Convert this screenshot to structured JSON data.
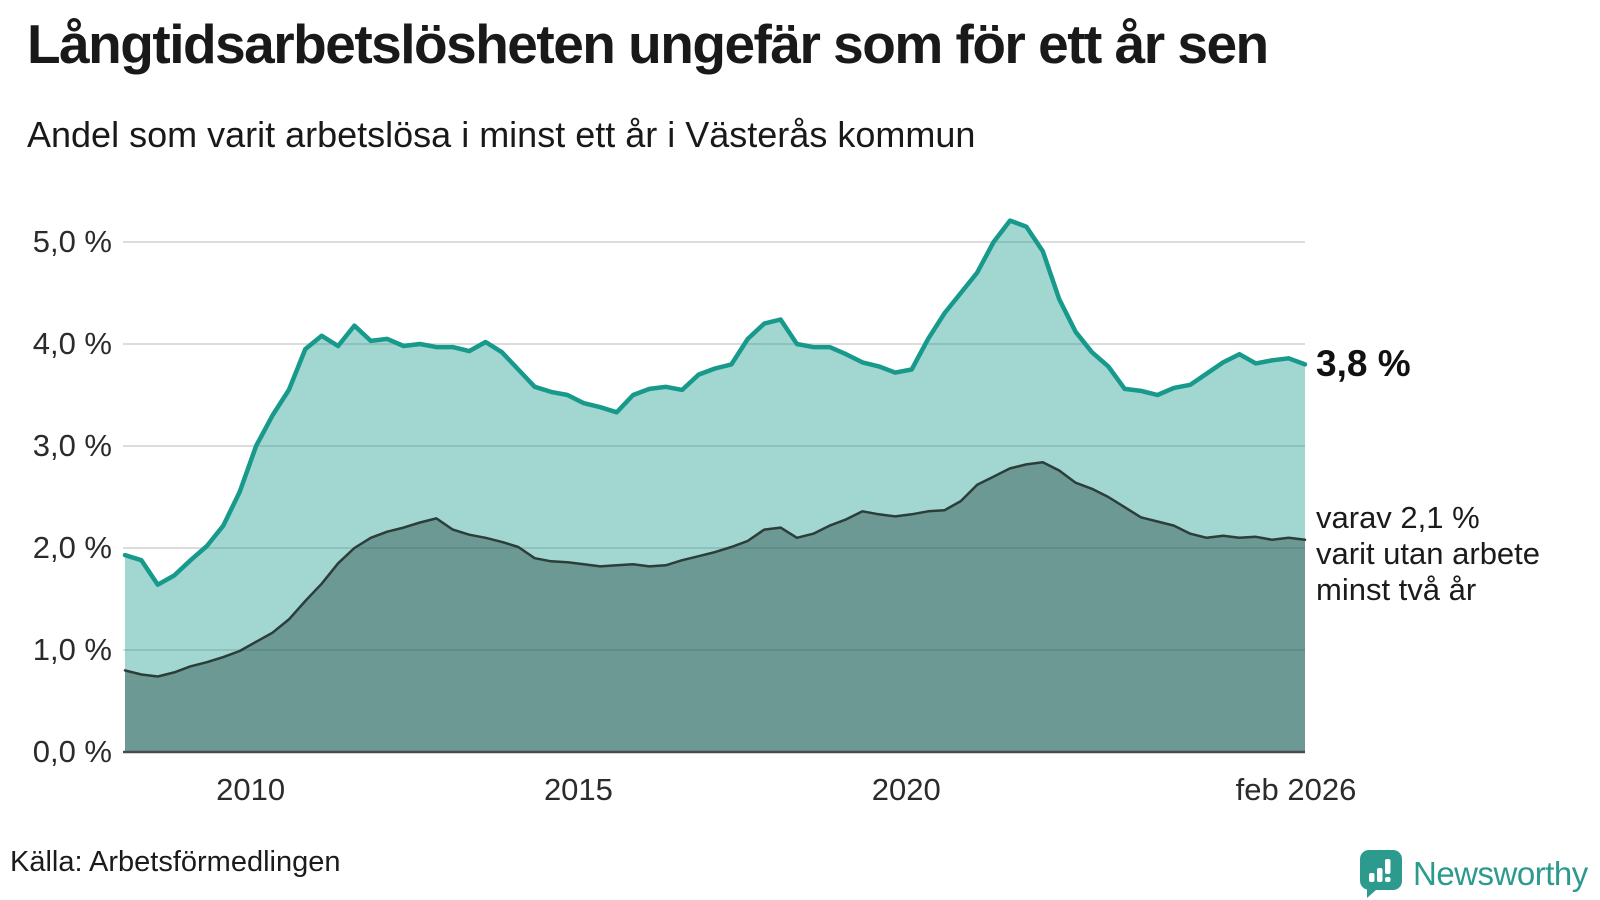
{
  "header": {
    "title": "Långtidsarbetslösheten ungefär som för ett år sen",
    "subtitle": "Andel som varit arbetslösa i minst ett år i Västerås kommun"
  },
  "annotations": {
    "end_value_label": "3,8 %",
    "secondary_lines": [
      "varav 2,1 %",
      "varit utan arbete",
      "minst två år"
    ]
  },
  "footer": {
    "source": "Källa: Arbetsförmedlingen",
    "logo_text": "Newsworthy"
  },
  "colors": {
    "accent_teal": "#17998b",
    "area_one_year_fill": "rgba(23,153,139,0.40)",
    "dark_line": "#2c3e39",
    "area_two_year_fill": "rgba(35,70,64,0.42)",
    "gridline": "#dcdcdc",
    "baseline": "#4a4a4a",
    "logo_teal": "#2d9a8e",
    "text": "#191919"
  },
  "chart_data": {
    "type": "area",
    "title": "Långtidsarbetslösheten ungefär som för ett år sen",
    "subtitle": "Andel som varit arbetslösa i minst ett år i Västerås kommun",
    "unit": "%",
    "ylim": [
      0,
      5.4
    ],
    "grid": "horizontal",
    "legend_position": "none",
    "y_gridlines": [
      1,
      2,
      3,
      4,
      5
    ],
    "y_ticks": [
      {
        "value": 5,
        "label": "5,0 %"
      },
      {
        "value": 4,
        "label": "4,0 %"
      },
      {
        "value": 3,
        "label": "3,0 %"
      },
      {
        "value": 2,
        "label": "2,0 %"
      },
      {
        "value": 1,
        "label": "1,0 %"
      },
      {
        "value": 0,
        "label": "0,0 %"
      }
    ],
    "x_ticks": [
      {
        "date": "2010-01",
        "label": "2010"
      },
      {
        "date": "2015-01",
        "label": "2015"
      },
      {
        "date": "2020-01",
        "label": "2020"
      },
      {
        "date": "2026-02",
        "label": "feb 2026"
      }
    ],
    "x_range": {
      "start": "2008-02",
      "end": "2026-02"
    },
    "x": [
      "2008-02",
      "2008-05",
      "2008-08",
      "2008-11",
      "2009-02",
      "2009-05",
      "2009-08",
      "2009-11",
      "2010-02",
      "2010-05",
      "2010-08",
      "2010-11",
      "2011-02",
      "2011-05",
      "2011-08",
      "2011-11",
      "2012-02",
      "2012-05",
      "2012-08",
      "2012-11",
      "2013-02",
      "2013-05",
      "2013-08",
      "2013-11",
      "2014-02",
      "2014-05",
      "2014-08",
      "2014-11",
      "2015-02",
      "2015-05",
      "2015-08",
      "2015-11",
      "2016-02",
      "2016-05",
      "2016-08",
      "2016-11",
      "2017-02",
      "2017-05",
      "2017-08",
      "2017-11",
      "2018-02",
      "2018-05",
      "2018-08",
      "2018-11",
      "2019-02",
      "2019-05",
      "2019-08",
      "2019-11",
      "2020-02",
      "2020-05",
      "2020-08",
      "2020-11",
      "2021-02",
      "2021-05",
      "2021-08",
      "2021-11",
      "2022-02",
      "2022-05",
      "2022-08",
      "2022-11",
      "2023-02",
      "2023-05",
      "2023-08",
      "2023-11",
      "2024-02",
      "2024-05",
      "2024-08",
      "2024-11",
      "2025-02",
      "2025-05",
      "2025-08",
      "2025-11",
      "2026-02"
    ],
    "series": [
      {
        "name": "Arbetslösa minst ett år",
        "end_value_label": "3,8 %",
        "line_color": "#17998b",
        "line_width": 4.5,
        "fill": "rgba(23,153,139,0.40)",
        "values": [
          1.93,
          1.88,
          1.64,
          1.73,
          1.88,
          2.02,
          2.22,
          2.55,
          3.0,
          3.3,
          3.55,
          3.95,
          4.08,
          3.98,
          4.18,
          4.03,
          4.05,
          3.98,
          4.0,
          3.97,
          3.97,
          3.93,
          4.02,
          3.92,
          3.75,
          3.58,
          3.53,
          3.5,
          3.42,
          3.38,
          3.33,
          3.5,
          3.56,
          3.58,
          3.55,
          3.7,
          3.76,
          3.8,
          4.05,
          4.2,
          4.24,
          4.0,
          3.97,
          3.97,
          3.9,
          3.82,
          3.78,
          3.72,
          3.75,
          4.05,
          4.3,
          4.5,
          4.7,
          5.0,
          5.21,
          5.15,
          4.91,
          4.44,
          4.12,
          3.92,
          3.78,
          3.56,
          3.54,
          3.5,
          3.57,
          3.6,
          3.71,
          3.82,
          3.9,
          3.81,
          3.84,
          3.86,
          3.8
        ]
      },
      {
        "name": "Varav utan arbete minst två år",
        "end_value_label": "2,1 %",
        "line_color": "#2c3e39",
        "line_width": 2.5,
        "fill": "rgba(35,70,64,0.42)",
        "values": [
          0.8,
          0.76,
          0.74,
          0.78,
          0.84,
          0.88,
          0.93,
          0.99,
          1.08,
          1.17,
          1.3,
          1.48,
          1.65,
          1.85,
          2.0,
          2.1,
          2.16,
          2.2,
          2.25,
          2.29,
          2.18,
          2.13,
          2.1,
          2.06,
          2.01,
          1.9,
          1.87,
          1.86,
          1.84,
          1.82,
          1.83,
          1.84,
          1.82,
          1.83,
          1.88,
          1.92,
          1.96,
          2.01,
          2.07,
          2.18,
          2.2,
          2.1,
          2.14,
          2.22,
          2.28,
          2.36,
          2.33,
          2.31,
          2.33,
          2.36,
          2.37,
          2.46,
          2.62,
          2.7,
          2.78,
          2.82,
          2.84,
          2.76,
          2.64,
          2.58,
          2.5,
          2.4,
          2.3,
          2.26,
          2.22,
          2.14,
          2.1,
          2.12,
          2.1,
          2.11,
          2.08,
          2.1,
          2.08
        ]
      }
    ]
  }
}
